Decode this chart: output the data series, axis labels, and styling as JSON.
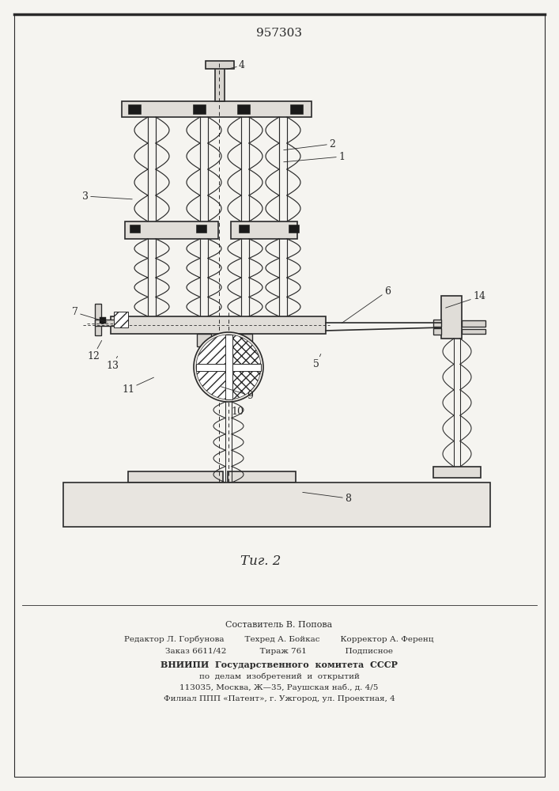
{
  "patent_number": "957303",
  "fig_label": "Τиг. 2",
  "bg_color": "#f5f4f0",
  "line_color": "#2a2a2a",
  "footer_lines": [
    "Составитель В. Попова",
    "Редактор Л. Горбунова          Техред А. Бойкас          Корректор А. Ференц",
    "Заказ 6611/42               Тираж 761                 Подписное",
    "ВНИИПИ  Государственного  комитета  СССР",
    "по  делам  изобретений  и  открытий",
    "113035, Москва, Ж—35, Раушская наб., д. 4/5",
    "Филиал ППП «Патент», г. Ужгород, ул. Проектная, 4"
  ]
}
